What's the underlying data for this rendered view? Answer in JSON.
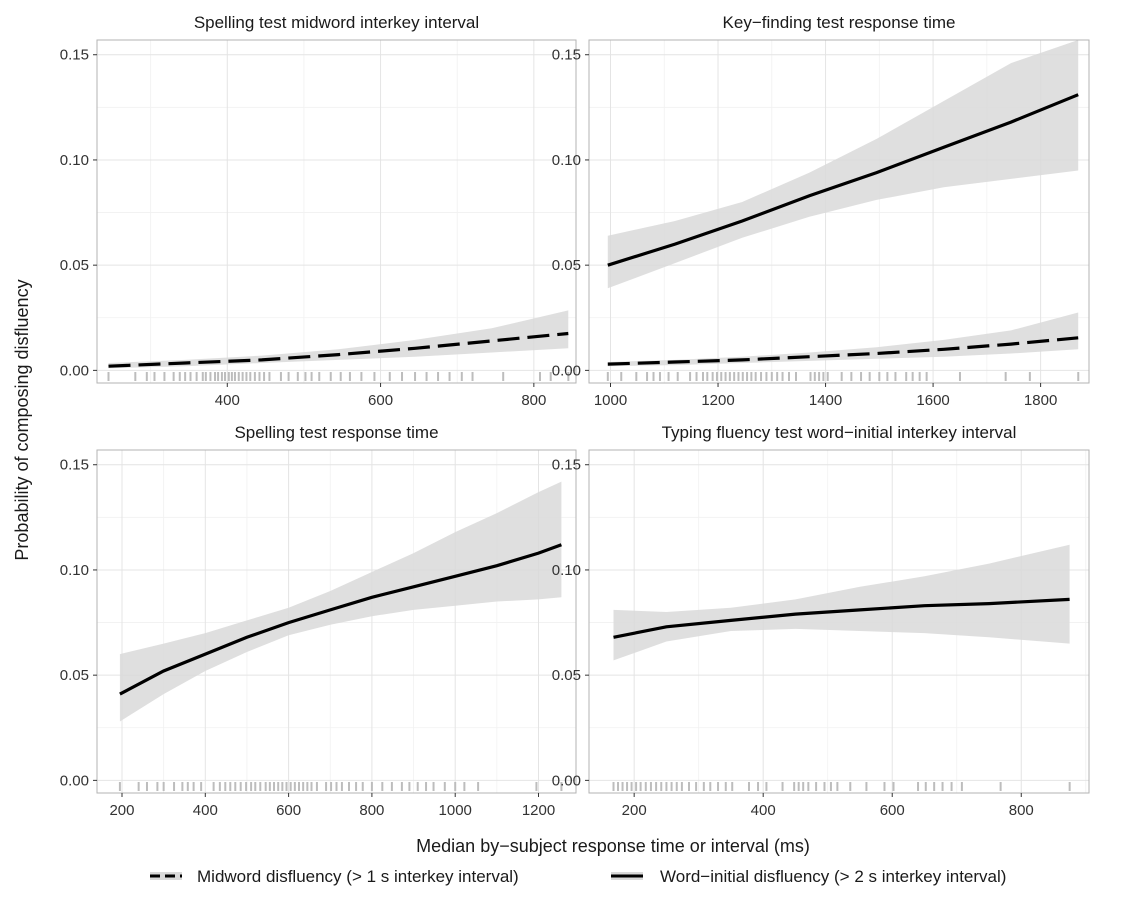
{
  "figure": {
    "ylabel": "Probability of composing disfluency",
    "xlabel": "Median by−subject response time or interval (ms)",
    "legend": [
      {
        "label": "Midword disfluency (> 1 s interkey interval)",
        "linetype": "dashed"
      },
      {
        "label": "Word−initial disfluency (> 2 s interkey interval)",
        "linetype": "solid"
      }
    ],
    "colors": {
      "line": "#000000",
      "ribbon": "#d9d9d9",
      "rug": "#bdbdbd",
      "grid": "#e4e4e4",
      "border": "#b3b3b3"
    }
  },
  "chart_data": [
    {
      "type": "line",
      "title": "Spelling test midword interkey interval",
      "xlim": [
        230,
        855
      ],
      "ylim": [
        -0.006,
        0.157
      ],
      "xticks": [
        400,
        600,
        800
      ],
      "yticks": [
        0.0,
        0.05,
        0.1,
        0.15
      ],
      "ytick_labels": [
        "0.00",
        "0.05",
        "0.10",
        "0.15"
      ],
      "series": [
        {
          "linetype": "dashed",
          "x": [
            245,
            345,
            445,
            545,
            645,
            745,
            845
          ],
          "y": [
            0.002,
            0.0035,
            0.005,
            0.0075,
            0.0105,
            0.014,
            0.0175
          ],
          "lower": [
            0.001,
            0.002,
            0.0035,
            0.005,
            0.0065,
            0.0085,
            0.0105
          ],
          "upper": [
            0.0035,
            0.005,
            0.007,
            0.01,
            0.0145,
            0.02,
            0.0285
          ]
        }
      ],
      "rug": [
        245,
        280,
        295,
        305,
        318,
        330,
        338,
        345,
        352,
        360,
        368,
        372,
        378,
        384,
        388,
        393,
        397,
        402,
        406,
        410,
        415,
        420,
        425,
        430,
        436,
        442,
        448,
        455,
        470,
        480,
        492,
        502,
        510,
        520,
        535,
        548,
        560,
        575,
        592,
        612,
        628,
        645,
        660,
        675,
        690,
        706,
        720,
        760,
        808,
        822,
        845
      ]
    },
    {
      "type": "line",
      "title": "Key−finding test response time",
      "xlim": [
        960,
        1890
      ],
      "ylim": [
        -0.006,
        0.157
      ],
      "xticks": [
        1000,
        1200,
        1400,
        1600,
        1800
      ],
      "yticks": [
        0.0,
        0.05,
        0.1,
        0.15
      ],
      "ytick_labels": [
        "0.00",
        "0.05",
        "0.10",
        "0.15"
      ],
      "series": [
        {
          "linetype": "solid",
          "x": [
            995,
            1120,
            1245,
            1370,
            1495,
            1620,
            1745,
            1870
          ],
          "y": [
            0.05,
            0.06,
            0.071,
            0.083,
            0.094,
            0.106,
            0.118,
            0.131
          ],
          "lower": [
            0.039,
            0.051,
            0.063,
            0.073,
            0.081,
            0.087,
            0.091,
            0.095
          ],
          "upper": [
            0.064,
            0.071,
            0.08,
            0.094,
            0.11,
            0.128,
            0.146,
            0.168
          ]
        },
        {
          "linetype": "dashed",
          "x": [
            995,
            1120,
            1245,
            1370,
            1495,
            1620,
            1745,
            1870
          ],
          "y": [
            0.003,
            0.004,
            0.005,
            0.0065,
            0.008,
            0.01,
            0.0125,
            0.0155
          ],
          "lower": [
            0.002,
            0.0025,
            0.0035,
            0.0045,
            0.0055,
            0.0065,
            0.008,
            0.01
          ],
          "upper": [
            0.004,
            0.005,
            0.0065,
            0.0085,
            0.011,
            0.0145,
            0.019,
            0.0275
          ]
        }
      ],
      "rug": [
        995,
        1020,
        1048,
        1068,
        1080,
        1092,
        1108,
        1125,
        1148,
        1160,
        1172,
        1180,
        1190,
        1198,
        1206,
        1214,
        1222,
        1230,
        1238,
        1246,
        1254,
        1262,
        1270,
        1280,
        1290,
        1300,
        1310,
        1320,
        1332,
        1345,
        1372,
        1380,
        1388,
        1396,
        1404,
        1430,
        1448,
        1466,
        1482,
        1500,
        1515,
        1530,
        1550,
        1562,
        1575,
        1588,
        1650,
        1735,
        1780,
        1870
      ]
    },
    {
      "type": "line",
      "title": "Spelling test response time",
      "xlim": [
        140,
        1290
      ],
      "ylim": [
        -0.006,
        0.157
      ],
      "xticks": [
        200,
        400,
        600,
        800,
        1000,
        1200
      ],
      "yticks": [
        0.0,
        0.05,
        0.1,
        0.15
      ],
      "ytick_labels": [
        "0.00",
        "0.05",
        "0.10",
        "0.15"
      ],
      "series": [
        {
          "linetype": "solid",
          "x": [
            195,
            300,
            400,
            500,
            600,
            700,
            800,
            900,
            1000,
            1100,
            1200,
            1255
          ],
          "y": [
            0.041,
            0.052,
            0.06,
            0.068,
            0.075,
            0.081,
            0.087,
            0.092,
            0.097,
            0.102,
            0.108,
            0.112
          ],
          "lower": [
            0.028,
            0.041,
            0.052,
            0.061,
            0.069,
            0.074,
            0.078,
            0.081,
            0.083,
            0.085,
            0.086,
            0.087
          ],
          "upper": [
            0.06,
            0.065,
            0.07,
            0.076,
            0.082,
            0.09,
            0.099,
            0.108,
            0.118,
            0.127,
            0.137,
            0.142
          ]
        }
      ],
      "rug": [
        195,
        240,
        260,
        285,
        300,
        325,
        345,
        358,
        372,
        390,
        420,
        435,
        448,
        460,
        472,
        485,
        498,
        510,
        520,
        532,
        545,
        555,
        565,
        575,
        585,
        595,
        605,
        615,
        625,
        635,
        645,
        655,
        668,
        690,
        702,
        715,
        728,
        745,
        762,
        778,
        800,
        825,
        848,
        872,
        890,
        910,
        930,
        948,
        975,
        1000,
        1022,
        1055,
        1195,
        1255
      ]
    },
    {
      "type": "line",
      "title": "Typing fluency test word−initial interkey interval",
      "xlim": [
        130,
        905
      ],
      "ylim": [
        -0.006,
        0.157
      ],
      "xticks": [
        200,
        400,
        600,
        800
      ],
      "yticks": [
        0.0,
        0.05,
        0.1,
        0.15
      ],
      "ytick_labels": [
        "0.00",
        "0.05",
        "0.10",
        "0.15"
      ],
      "series": [
        {
          "linetype": "solid",
          "x": [
            168,
            250,
            350,
            450,
            550,
            650,
            750,
            875
          ],
          "y": [
            0.068,
            0.073,
            0.076,
            0.079,
            0.081,
            0.083,
            0.084,
            0.086
          ],
          "lower": [
            0.057,
            0.066,
            0.071,
            0.072,
            0.071,
            0.07,
            0.068,
            0.065
          ],
          "upper": [
            0.081,
            0.08,
            0.082,
            0.086,
            0.092,
            0.097,
            0.103,
            0.112
          ]
        }
      ],
      "rug": [
        168,
        175,
        182,
        189,
        196,
        203,
        210,
        218,
        226,
        234,
        242,
        250,
        258,
        266,
        274,
        285,
        296,
        308,
        318,
        330,
        342,
        352,
        378,
        392,
        405,
        430,
        448,
        455,
        462,
        470,
        482,
        495,
        505,
        515,
        535,
        560,
        588,
        602,
        640,
        652,
        665,
        678,
        692,
        708,
        768,
        875
      ]
    }
  ]
}
